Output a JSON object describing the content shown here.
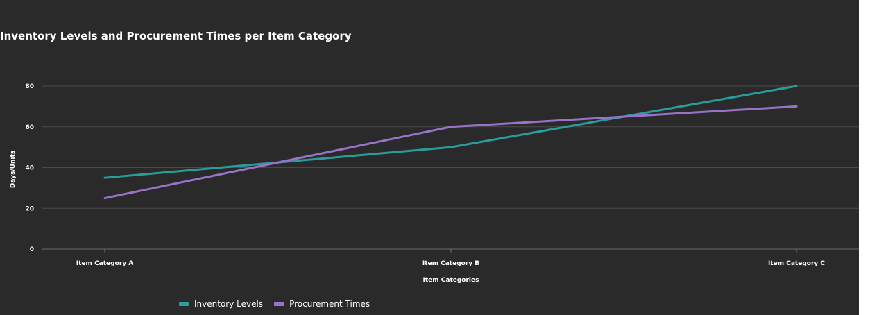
{
  "chart_data": {
    "type": "line",
    "title": "Inventory Levels and Procurement Times per Item Category",
    "xlabel": "Item Categories",
    "ylabel": "Days/Units",
    "categories": [
      "Item Category A",
      "Item Category B",
      "Item Category C"
    ],
    "yticks": [
      "0",
      "20",
      "40",
      "60",
      "80"
    ],
    "ylim": [
      0,
      80
    ],
    "grid": true,
    "legend_position": "bottom-left",
    "series": [
      {
        "name": "Inventory Levels",
        "values": [
          35,
          50,
          80
        ],
        "color": "#2a9d9a"
      },
      {
        "name": "Procurement Times",
        "values": [
          25,
          60,
          70
        ],
        "color": "#9a72c9"
      }
    ]
  }
}
